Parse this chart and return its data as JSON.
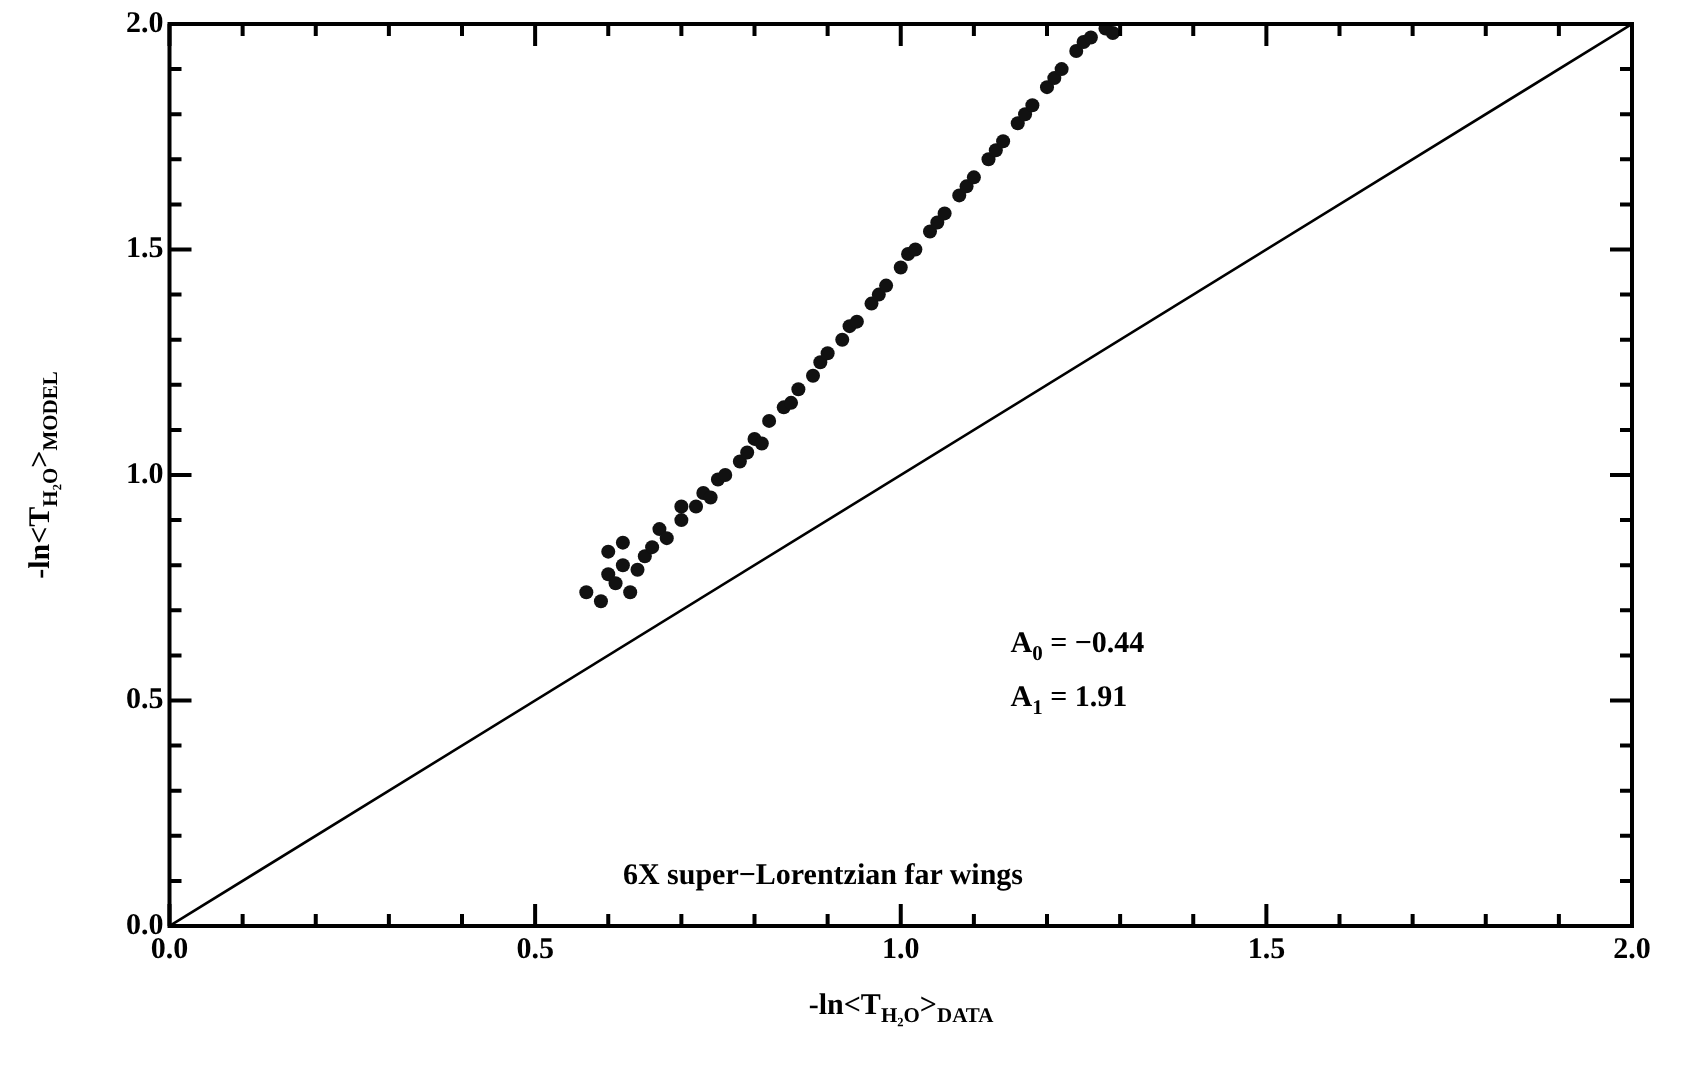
{
  "chart_data": {
    "type": "scatter",
    "xlabel": "-ln<T$_{H₂O}$>$_{DATA}$",
    "ylabel": "-ln<T$_{H₂O}$>$_{MODEL}$",
    "annotations": [
      "A$_{0}$ = −0.44",
      "A$_{1}$ = 1.91",
      "6X super−Lorentzian far wings"
    ],
    "xlim": [
      0,
      2
    ],
    "ylim": [
      0,
      2
    ],
    "xticks": [
      {
        "value": 0,
        "label": "0.0"
      },
      {
        "value": 0.1,
        "label": null
      },
      {
        "value": 0.2,
        "label": null
      },
      {
        "value": 0.3,
        "label": null
      },
      {
        "value": 0.4,
        "label": null
      },
      {
        "value": 0.5,
        "label": "0.5"
      },
      {
        "value": 0.6,
        "label": null
      },
      {
        "value": 0.7,
        "label": null
      },
      {
        "value": 0.8,
        "label": null
      },
      {
        "value": 0.9,
        "label": null
      },
      {
        "value": 1,
        "label": "1.0"
      },
      {
        "value": 1.1,
        "label": null
      },
      {
        "value": 1.2,
        "label": null
      },
      {
        "value": 1.3,
        "label": null
      },
      {
        "value": 1.4,
        "label": null
      },
      {
        "value": 1.5,
        "label": "1.5"
      },
      {
        "value": 1.6,
        "label": null
      },
      {
        "value": 1.7,
        "label": null
      },
      {
        "value": 1.8,
        "label": null
      },
      {
        "value": 1.9,
        "label": null
      },
      {
        "value": 2,
        "label": "2.0"
      }
    ],
    "yticks": [
      {
        "value": 0,
        "label": "0.0"
      },
      {
        "value": 0.1,
        "label": null
      },
      {
        "value": 0.2,
        "label": null
      },
      {
        "value": 0.3,
        "label": null
      },
      {
        "value": 0.4,
        "label": null
      },
      {
        "value": 0.5,
        "label": "0.5"
      },
      {
        "value": 0.6,
        "label": null
      },
      {
        "value": 0.7,
        "label": null
      },
      {
        "value": 0.8,
        "label": null
      },
      {
        "value": 0.9,
        "label": null
      },
      {
        "value": 1,
        "label": "1.0"
      },
      {
        "value": 1.1,
        "label": null
      },
      {
        "value": 1.2,
        "label": null
      },
      {
        "value": 1.3,
        "label": null
      },
      {
        "value": 1.4,
        "label": null
      },
      {
        "value": 1.5,
        "label": "1.5"
      },
      {
        "value": 1.6,
        "label": null
      },
      {
        "value": 1.7,
        "label": null
      },
      {
        "value": 1.8,
        "label": null
      },
      {
        "value": 1.9,
        "label": null
      },
      {
        "value": 2,
        "label": "2.0"
      }
    ],
    "grid": false,
    "legend": false,
    "series": [
      {
        "type": "line",
        "color": "#000000",
        "marker": "none",
        "x": [
          0,
          2
        ],
        "values": [
          0,
          2
        ]
      },
      {
        "color": "#111111",
        "marker": "circle",
        "x": [
          0.57,
          0.59,
          0.6,
          0.61,
          0.62,
          0.63,
          0.64,
          0.6,
          0.62,
          0.65,
          0.66,
          0.67,
          0.68,
          0.7,
          0.7,
          0.72,
          0.73,
          0.74,
          0.75,
          0.76,
          0.78,
          0.79,
          0.8,
          0.81,
          0.82,
          0.84,
          0.85,
          0.86,
          0.88,
          0.89,
          0.9,
          0.92,
          0.93,
          0.94,
          0.96,
          0.97,
          0.98,
          1.0,
          1.01,
          1.02,
          1.04,
          1.05,
          1.06,
          1.08,
          1.09,
          1.1,
          1.12,
          1.13,
          1.14,
          1.16,
          1.17,
          1.18,
          1.2,
          1.21,
          1.22,
          1.24,
          1.25,
          1.26,
          1.28,
          1.29
        ],
        "values": [
          0.74,
          0.72,
          0.78,
          0.76,
          0.8,
          0.74,
          0.79,
          0.83,
          0.85,
          0.82,
          0.84,
          0.88,
          0.86,
          0.9,
          0.93,
          0.93,
          0.96,
          0.95,
          0.99,
          1.0,
          1.03,
          1.05,
          1.08,
          1.07,
          1.12,
          1.15,
          1.16,
          1.19,
          1.22,
          1.25,
          1.27,
          1.3,
          1.33,
          1.34,
          1.38,
          1.4,
          1.42,
          1.46,
          1.49,
          1.5,
          1.54,
          1.56,
          1.58,
          1.62,
          1.64,
          1.66,
          1.7,
          1.72,
          1.74,
          1.78,
          1.8,
          1.82,
          1.86,
          1.88,
          1.9,
          1.94,
          1.96,
          1.97,
          1.99,
          1.98
        ]
      }
    ]
  }
}
